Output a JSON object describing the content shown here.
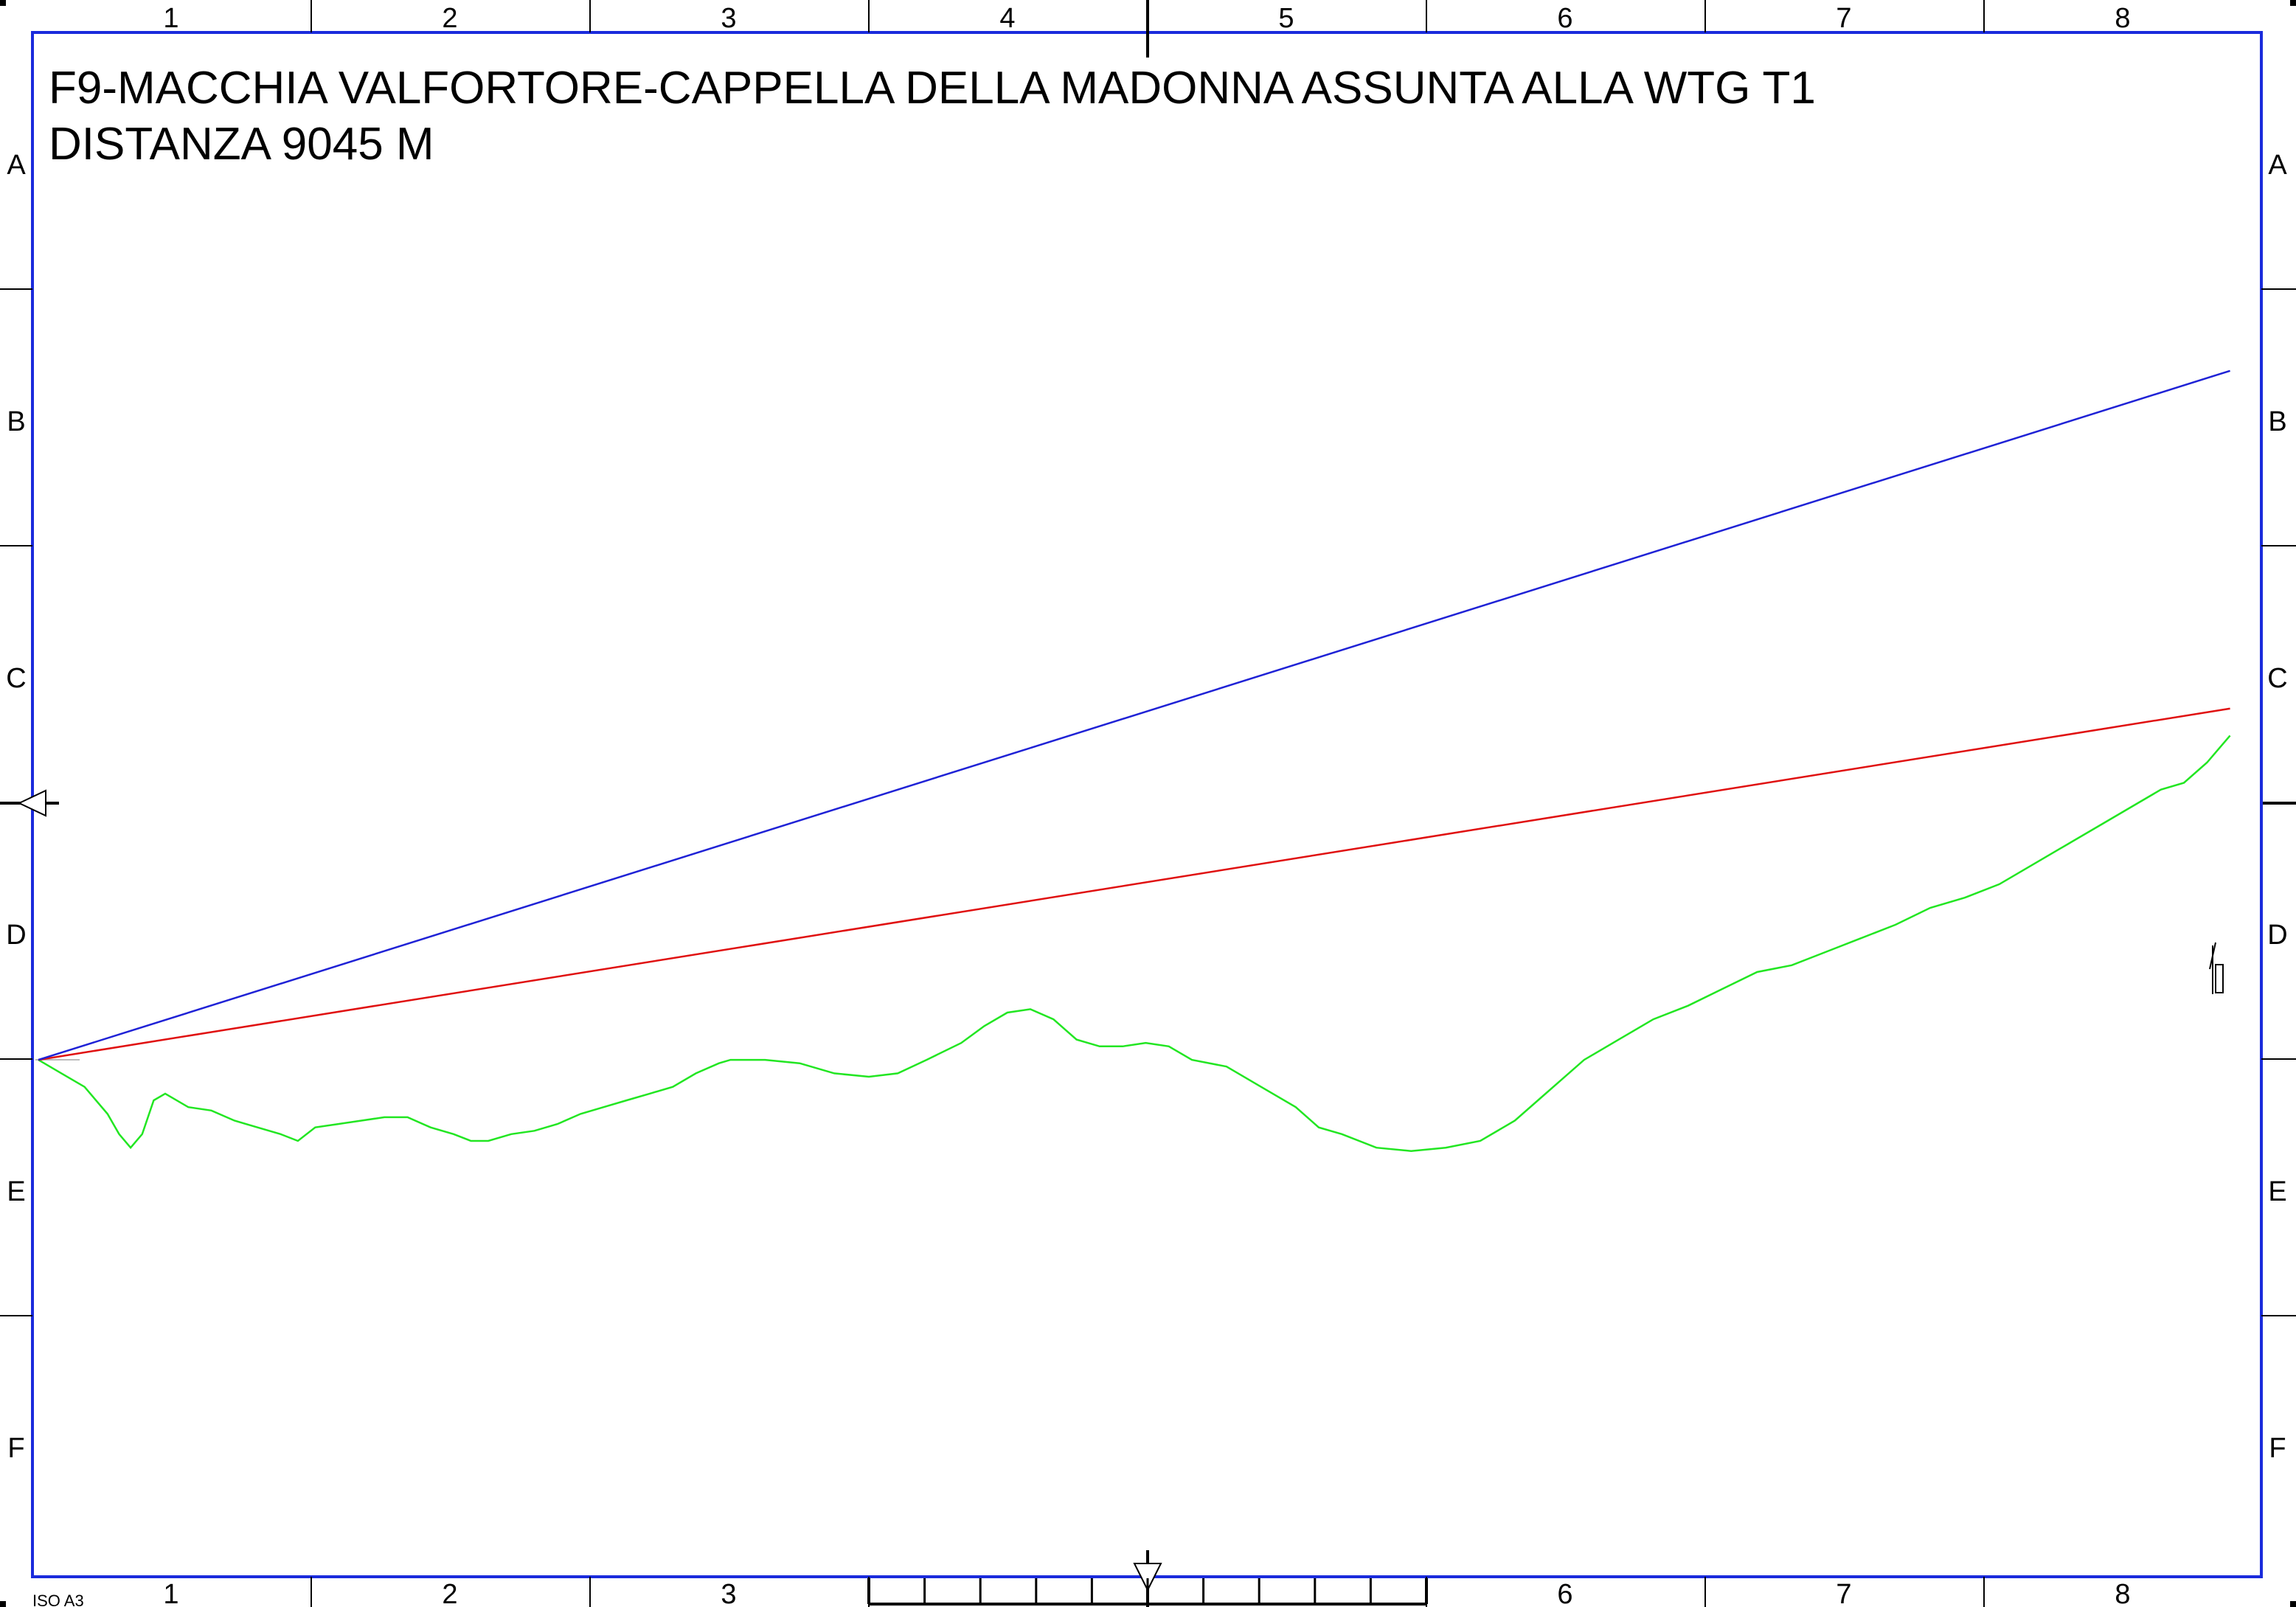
{
  "drawing": {
    "title_line1": "F9-MACCHIA VALFORTORE-CAPPELLA DELLA MADONNA ASSUNTA ALLA WTG T1",
    "title_line2": "DISTANZA 9045 M",
    "paper_format": "ISO A3",
    "colors": {
      "frame": "#1a2bdc",
      "sight_line": "#1f22d6",
      "reference_line": "#e01010",
      "terrain": "#22e622",
      "ink": "#000000"
    }
  },
  "zones": {
    "columns": [
      "1",
      "2",
      "3",
      "4",
      "5",
      "6",
      "7",
      "8"
    ],
    "rows": [
      "A",
      "B",
      "C",
      "D",
      "E",
      "F"
    ]
  },
  "profile": {
    "distance_m": 9045,
    "terrain": [
      [
        0.0,
        0.12
      ],
      [
        0.02,
        0.1
      ],
      [
        0.04,
        0.08
      ],
      [
        0.06,
        0.04
      ],
      [
        0.07,
        0.01
      ],
      [
        0.08,
        -0.01
      ],
      [
        0.09,
        0.01
      ],
      [
        0.1,
        0.06
      ],
      [
        0.11,
        0.07
      ],
      [
        0.13,
        0.05
      ],
      [
        0.15,
        0.045
      ],
      [
        0.17,
        0.03
      ],
      [
        0.19,
        0.02
      ],
      [
        0.21,
        0.01
      ],
      [
        0.225,
        0.0
      ],
      [
        0.24,
        0.02
      ],
      [
        0.26,
        0.025
      ],
      [
        0.28,
        0.03
      ],
      [
        0.3,
        0.035
      ],
      [
        0.32,
        0.035
      ],
      [
        0.34,
        0.02
      ],
      [
        0.36,
        0.01
      ],
      [
        0.375,
        0.0
      ],
      [
        0.39,
        0.0
      ],
      [
        0.41,
        0.01
      ],
      [
        0.43,
        0.015
      ],
      [
        0.45,
        0.025
      ],
      [
        0.47,
        0.04
      ],
      [
        0.49,
        0.05
      ],
      [
        0.51,
        0.06
      ],
      [
        0.53,
        0.07
      ],
      [
        0.55,
        0.08
      ],
      [
        0.57,
        0.1
      ],
      [
        0.59,
        0.115
      ],
      [
        0.6,
        0.12
      ],
      [
        0.63,
        0.12
      ],
      [
        0.66,
        0.115
      ],
      [
        0.69,
        0.1
      ],
      [
        0.72,
        0.095
      ],
      [
        0.745,
        0.1
      ],
      [
        0.77,
        0.12
      ],
      [
        0.8,
        0.145
      ],
      [
        0.82,
        0.17
      ],
      [
        0.84,
        0.19
      ],
      [
        0.86,
        0.195
      ],
      [
        0.88,
        0.18
      ],
      [
        0.9,
        0.15
      ],
      [
        0.92,
        0.14
      ],
      [
        0.94,
        0.14
      ],
      [
        0.96,
        0.145
      ],
      [
        0.98,
        0.14
      ],
      [
        1.0,
        0.12
      ],
      [
        1.03,
        0.11
      ],
      [
        1.06,
        0.08
      ],
      [
        1.09,
        0.05
      ],
      [
        1.11,
        0.02
      ],
      [
        1.13,
        0.01
      ],
      [
        1.16,
        -0.01
      ],
      [
        1.19,
        -0.015
      ],
      [
        1.22,
        -0.01
      ],
      [
        1.25,
        0.0
      ],
      [
        1.28,
        0.03
      ],
      [
        1.3,
        0.06
      ],
      [
        1.32,
        0.09
      ],
      [
        1.34,
        0.12
      ],
      [
        1.37,
        0.15
      ],
      [
        1.4,
        0.18
      ],
      [
        1.43,
        0.2
      ],
      [
        1.46,
        0.225
      ],
      [
        1.49,
        0.25
      ],
      [
        1.52,
        0.26
      ],
      [
        1.55,
        0.28
      ],
      [
        1.58,
        0.3
      ],
      [
        1.61,
        0.32
      ],
      [
        1.64,
        0.345
      ],
      [
        1.67,
        0.36
      ],
      [
        1.7,
        0.38
      ],
      [
        1.73,
        0.41
      ],
      [
        1.76,
        0.44
      ],
      [
        1.79,
        0.47
      ],
      [
        1.82,
        0.5
      ],
      [
        1.84,
        0.52
      ],
      [
        1.86,
        0.53
      ],
      [
        1.88,
        0.56
      ],
      [
        1.9,
        0.6
      ]
    ],
    "sight_line": [
      [
        0.0,
        0.12
      ],
      [
        1.9,
        1.14
      ]
    ],
    "reference_line": [
      [
        0.0,
        0.12
      ],
      [
        1.9,
        0.64
      ]
    ]
  }
}
